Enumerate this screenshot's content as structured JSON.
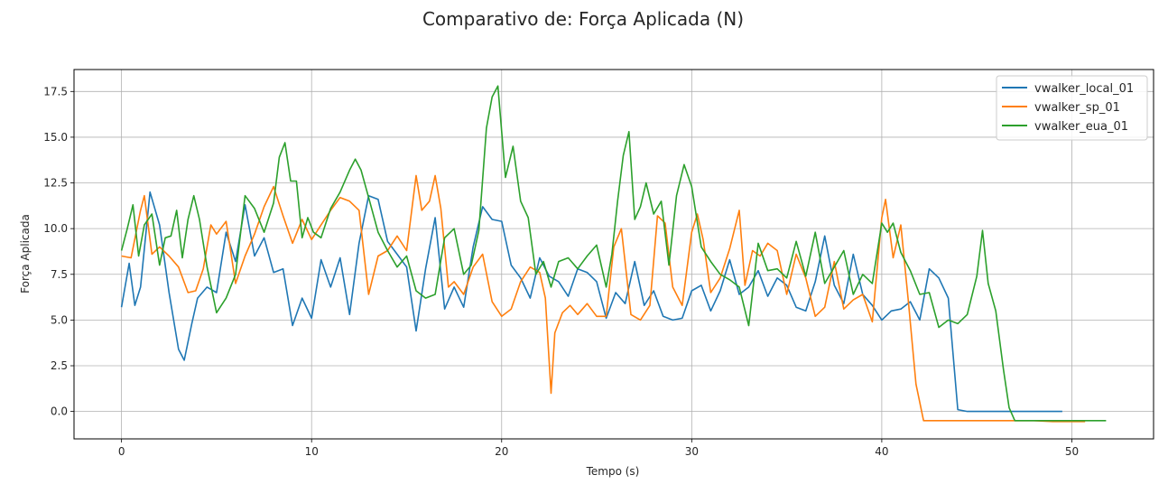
{
  "chart_data": {
    "type": "line",
    "title": "Comparativo de: Força Aplicada (N)",
    "xlabel": "Tempo (s)",
    "ylabel": "Força Aplicada",
    "xlim": [
      -2.5,
      54.3
    ],
    "ylim": [
      -1.5,
      18.7
    ],
    "xticks": [
      0,
      10,
      20,
      30,
      40,
      50
    ],
    "yticks": [
      0.0,
      2.5,
      5.0,
      7.5,
      10.0,
      12.5,
      15.0,
      17.5
    ],
    "xtick_labels": [
      "0",
      "10",
      "20",
      "30",
      "40",
      "50"
    ],
    "ytick_labels": [
      "0.0",
      "2.5",
      "5.0",
      "7.5",
      "10.0",
      "12.5",
      "15.0",
      "17.5"
    ],
    "grid": true,
    "legend_position": "upper-right",
    "series": [
      {
        "name": "vwalker_local_01",
        "color": "#1f77b4",
        "x": [
          0,
          0.4,
          0.7,
          1.0,
          1.5,
          2.0,
          2.5,
          3.0,
          3.3,
          3.7,
          4.0,
          4.5,
          5.0,
          5.5,
          6.0,
          6.5,
          7.0,
          7.5,
          8.0,
          8.5,
          9.0,
          9.5,
          10.0,
          10.5,
          11.0,
          11.5,
          12.0,
          12.5,
          13.0,
          13.5,
          14.0,
          14.5,
          15.0,
          15.5,
          16.0,
          16.5,
          17.0,
          17.5,
          18.0,
          18.5,
          19.0,
          19.5,
          20.0,
          20.5,
          21.0,
          21.5,
          22.0,
          22.5,
          23.0,
          23.5,
          24.0,
          24.5,
          25.0,
          25.5,
          26.0,
          26.5,
          27.0,
          27.5,
          28.0,
          28.5,
          29.0,
          29.5,
          30.0,
          30.5,
          31.0,
          31.5,
          32.0,
          32.5,
          33.0,
          33.5,
          34.0,
          34.5,
          35.0,
          35.5,
          36.0,
          36.5,
          37.0,
          37.5,
          38.0,
          38.5,
          39.0,
          39.5,
          40.0,
          40.5,
          41.0,
          41.5,
          42.0,
          42.5,
          43.0,
          43.5,
          44.0,
          44.5,
          45.0,
          46.0,
          47.0,
          48.0,
          49.0,
          49.5
        ],
        "y": [
          5.7,
          8.1,
          5.8,
          6.8,
          12.0,
          10.2,
          6.5,
          3.4,
          2.8,
          4.8,
          6.2,
          6.8,
          6.5,
          9.8,
          8.2,
          11.3,
          8.5,
          9.5,
          7.6,
          7.8,
          4.7,
          6.2,
          5.1,
          8.3,
          6.8,
          8.4,
          5.3,
          9.2,
          11.8,
          11.6,
          9.3,
          8.6,
          7.9,
          4.4,
          7.8,
          10.6,
          5.6,
          6.8,
          5.7,
          9.0,
          11.2,
          10.5,
          10.4,
          8.0,
          7.3,
          6.2,
          8.4,
          7.4,
          7.1,
          6.3,
          7.8,
          7.6,
          7.1,
          5.1,
          6.5,
          5.9,
          8.2,
          5.8,
          6.6,
          5.2,
          5.0,
          5.1,
          6.6,
          6.9,
          5.5,
          6.6,
          8.3,
          6.4,
          6.8,
          7.7,
          6.3,
          7.3,
          6.9,
          5.7,
          5.5,
          7.1,
          9.6,
          6.9,
          5.9,
          8.6,
          6.4,
          5.8,
          5.0,
          5.5,
          5.6,
          6.0,
          5.0,
          7.8,
          7.3,
          6.2,
          0.1,
          0.0,
          0.0,
          0.0,
          0.0,
          0.0,
          0.0,
          0.0
        ]
      },
      {
        "name": "vwalker_sp_01",
        "color": "#ff7f0e",
        "x": [
          0,
          0.5,
          1.0,
          1.2,
          1.6,
          2.0,
          2.5,
          3.0,
          3.5,
          3.9,
          4.3,
          4.7,
          5.0,
          5.5,
          6.0,
          6.5,
          7.0,
          7.5,
          8.0,
          8.5,
          9.0,
          9.5,
          10.0,
          10.5,
          11.0,
          11.5,
          12.0,
          12.5,
          13.0,
          13.5,
          14.0,
          14.5,
          15.0,
          15.5,
          15.8,
          16.2,
          16.5,
          16.8,
          17.2,
          17.5,
          18.0,
          18.5,
          19.0,
          19.5,
          20.0,
          20.5,
          21.0,
          21.5,
          22.0,
          22.3,
          22.6,
          22.8,
          23.2,
          23.6,
          24.0,
          24.5,
          25.0,
          25.5,
          25.9,
          26.3,
          26.8,
          27.3,
          27.8,
          28.2,
          28.6,
          29.0,
          29.5,
          30.0,
          30.3,
          30.6,
          31.0,
          31.5,
          32.0,
          32.5,
          32.8,
          33.2,
          33.6,
          34.0,
          34.5,
          35.0,
          35.5,
          36.0,
          36.5,
          37.0,
          37.5,
          38.0,
          38.5,
          39.0,
          39.5,
          40.0,
          40.2,
          40.6,
          41.0,
          41.4,
          41.8,
          42.2,
          42.5,
          43.0,
          44.0,
          46.0,
          48.0,
          49.0,
          50.0,
          50.7
        ],
        "y": [
          8.5,
          8.4,
          11.0,
          11.8,
          8.6,
          9.0,
          8.5,
          7.9,
          6.5,
          6.6,
          7.8,
          10.2,
          9.7,
          10.4,
          7.0,
          8.5,
          9.7,
          11.2,
          12.3,
          10.7,
          9.2,
          10.5,
          9.4,
          10.2,
          11.0,
          11.7,
          11.5,
          11.0,
          6.4,
          8.5,
          8.8,
          9.6,
          8.8,
          12.9,
          11.0,
          11.5,
          12.9,
          11.1,
          6.8,
          7.1,
          6.4,
          7.9,
          8.6,
          6.0,
          5.2,
          5.6,
          7.1,
          7.9,
          7.6,
          6.2,
          1.0,
          4.3,
          5.4,
          5.8,
          5.3,
          5.9,
          5.2,
          5.2,
          9.0,
          10.0,
          5.3,
          5.0,
          5.8,
          10.7,
          10.3,
          6.8,
          5.8,
          9.8,
          10.8,
          9.4,
          6.5,
          7.3,
          8.9,
          11.0,
          6.9,
          8.8,
          8.5,
          9.2,
          8.8,
          6.4,
          8.6,
          7.3,
          5.2,
          5.7,
          8.2,
          5.6,
          6.1,
          6.4,
          4.9,
          10.6,
          11.6,
          8.4,
          10.2,
          6.0,
          1.5,
          -0.5,
          -0.5,
          -0.5,
          -0.5,
          -0.5,
          -0.5,
          -0.55,
          -0.55,
          -0.55
        ]
      },
      {
        "name": "vwalker_eua_01",
        "color": "#2ca02c",
        "x": [
          0,
          0.3,
          0.6,
          0.9,
          1.2,
          1.6,
          2.0,
          2.3,
          2.6,
          2.9,
          3.2,
          3.5,
          3.8,
          4.1,
          4.5,
          5.0,
          5.5,
          6.0,
          6.5,
          7.0,
          7.5,
          8.0,
          8.3,
          8.6,
          8.9,
          9.2,
          9.5,
          9.8,
          10.1,
          10.5,
          11.0,
          11.5,
          12.0,
          12.3,
          12.6,
          13.0,
          13.5,
          14.0,
          14.5,
          15.0,
          15.5,
          16.0,
          16.5,
          17.0,
          17.5,
          18.0,
          18.4,
          18.8,
          19.2,
          19.5,
          19.8,
          20.2,
          20.6,
          21.0,
          21.4,
          21.8,
          22.2,
          22.6,
          23.0,
          23.5,
          24.0,
          24.5,
          25.0,
          25.5,
          25.8,
          26.1,
          26.4,
          26.7,
          27.0,
          27.3,
          27.6,
          28.0,
          28.4,
          28.8,
          29.2,
          29.6,
          30.0,
          30.5,
          31.0,
          31.5,
          32.0,
          32.5,
          33.0,
          33.5,
          34.0,
          34.5,
          35.0,
          35.5,
          36.0,
          36.5,
          37.0,
          37.5,
          38.0,
          38.5,
          39.0,
          39.5,
          40.0,
          40.3,
          40.6,
          41.0,
          41.5,
          42.0,
          42.5,
          43.0,
          43.5,
          44.0,
          44.5,
          45.0,
          45.3,
          45.6,
          46.0,
          46.4,
          46.7,
          47.0,
          48.0,
          49.0,
          50.0,
          51.0,
          51.8
        ],
        "y": [
          8.8,
          10.0,
          11.3,
          8.5,
          10.2,
          10.8,
          8.0,
          9.5,
          9.6,
          11.0,
          8.4,
          10.5,
          11.8,
          10.5,
          7.9,
          5.4,
          6.2,
          7.5,
          11.8,
          11.1,
          9.8,
          11.4,
          13.9,
          14.7,
          12.6,
          12.6,
          9.5,
          10.6,
          9.8,
          9.5,
          11.1,
          12.0,
          13.2,
          13.8,
          13.2,
          11.7,
          9.8,
          8.8,
          7.9,
          8.5,
          6.6,
          6.2,
          6.4,
          9.5,
          10.0,
          7.5,
          8.0,
          9.9,
          15.5,
          17.2,
          17.8,
          12.8,
          14.5,
          11.5,
          10.6,
          7.5,
          8.2,
          6.8,
          8.2,
          8.4,
          7.8,
          8.5,
          9.1,
          6.8,
          8.6,
          11.5,
          14.0,
          15.3,
          10.5,
          11.2,
          12.5,
          10.8,
          11.5,
          8.0,
          11.8,
          13.5,
          12.3,
          9.0,
          8.2,
          7.5,
          7.2,
          6.8,
          4.7,
          9.2,
          7.7,
          7.8,
          7.3,
          9.3,
          7.4,
          9.8,
          7.0,
          7.9,
          8.8,
          6.4,
          7.5,
          7.0,
          10.3,
          9.8,
          10.3,
          8.7,
          7.7,
          6.4,
          6.5,
          4.6,
          5.0,
          4.8,
          5.3,
          7.4,
          9.9,
          7.0,
          5.5,
          2.3,
          0.2,
          -0.5,
          -0.5,
          -0.5,
          -0.5,
          -0.5,
          -0.5
        ]
      }
    ]
  }
}
